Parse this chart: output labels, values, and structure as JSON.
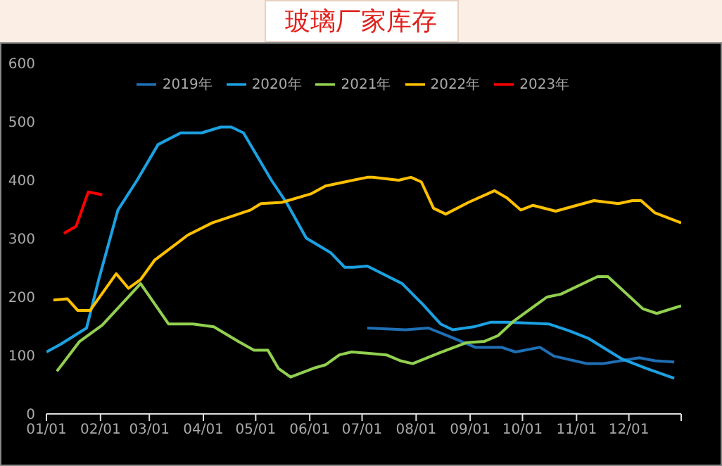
{
  "chart_data": {
    "type": "line",
    "title": "玻璃厂家库存",
    "legend": "top",
    "grid": false,
    "marker": "none",
    "line_style": "solid",
    "xlim": [
      "--01-01",
      "--12-31"
    ],
    "xticks": [
      {
        "value": "--01-01",
        "label": "01/01"
      },
      {
        "value": "--02-01",
        "label": "02/01"
      },
      {
        "value": "--03-01",
        "label": "03/01"
      },
      {
        "value": "--04-01",
        "label": "04/01"
      },
      {
        "value": "--05-01",
        "label": "05/01"
      },
      {
        "value": "--06-01",
        "label": "06/01"
      },
      {
        "value": "--07-01",
        "label": "07/01"
      },
      {
        "value": "--08-01",
        "label": "08/01"
      },
      {
        "value": "--09-01",
        "label": "09/01"
      },
      {
        "value": "--10-01",
        "label": "10/01"
      },
      {
        "value": "--11-01",
        "label": "11/01"
      },
      {
        "value": "--12-01",
        "label": "12/01"
      },
      {
        "value": "--12-31",
        "label": null
      }
    ],
    "ylim": [
      0,
      600
    ],
    "yticks": [
      0,
      100,
      200,
      300,
      400,
      500,
      600
    ],
    "series": [
      {
        "name": "2019年",
        "color": "#1f6fb4",
        "x": [
          "--07-04",
          "--07-26",
          "--08-08",
          "--08-19",
          "--09-04",
          "--09-19",
          "--09-27",
          "--10-11",
          "--10-19",
          "--11-07",
          "--11-16",
          "--12-07",
          "--12-16",
          "--12-27"
        ],
        "values": [
          147,
          144,
          147,
          134,
          114,
          114,
          106,
          114,
          99,
          86,
          86,
          96,
          91,
          89
        ]
      },
      {
        "name": "2020年",
        "color": "#1ba1e2",
        "x": [
          "--01-01",
          "--01-09",
          "--01-24",
          "--01-31",
          "--02-11",
          "--02-22",
          "--03-06",
          "--03-19",
          "--03-31",
          "--04-11",
          "--04-17",
          "--04-24",
          "--05-10",
          "--05-19",
          "--05-30",
          "--06-13",
          "--06-21",
          "--06-26",
          "--07-04",
          "--07-24",
          "--08-05",
          "--08-15",
          "--08-22",
          "--09-03",
          "--09-13",
          "--09-22",
          "--10-16",
          "--10-28",
          "--11-08",
          "--11-27",
          "--12-11",
          "--12-27"
        ],
        "values": [
          106,
          119,
          147,
          230,
          349,
          400,
          461,
          481,
          481,
          491,
          491,
          481,
          400,
          360,
          301,
          276,
          251,
          251,
          253,
          223,
          187,
          154,
          144,
          149,
          157,
          157,
          154,
          142,
          129,
          94,
          78,
          61
        ]
      },
      {
        "name": "2021年",
        "color": "#92d050",
        "x": [
          "--01-07",
          "--01-20",
          "--02-02",
          "--02-24",
          "--03-12",
          "--03-26",
          "--04-07",
          "--04-21",
          "--04-30",
          "--05-08",
          "--05-14",
          "--05-21",
          "--06-03",
          "--06-10",
          "--06-18",
          "--06-25",
          "--07-04",
          "--07-15",
          "--07-23",
          "--07-30",
          "--08-14",
          "--08-30",
          "--09-09",
          "--09-17",
          "--09-26",
          "--10-15",
          "--10-23",
          "--11-13",
          "--11-19",
          "--12-09",
          "--12-17",
          "--12-31"
        ],
        "values": [
          73,
          124,
          152,
          223,
          154,
          154,
          149,
          124,
          109,
          109,
          78,
          63,
          78,
          84,
          101,
          106,
          104,
          101,
          91,
          86,
          104,
          122,
          124,
          134,
          159,
          200,
          205,
          235,
          235,
          180,
          172,
          185
        ]
      },
      {
        "name": "2022年",
        "color": "#ffc000",
        "x": [
          "--01-05",
          "--01-13",
          "--01-19",
          "--01-26",
          "--02-10",
          "--02-17",
          "--02-24",
          "--03-04",
          "--03-23",
          "--04-06",
          "--04-28",
          "--05-04",
          "--05-16",
          "--06-02",
          "--06-10",
          "--06-21",
          "--07-04",
          "--07-07",
          "--07-22",
          "--07-29",
          "--08-04",
          "--08-11",
          "--08-18",
          "--08-31",
          "--09-15",
          "--09-22",
          "--09-30",
          "--10-07",
          "--10-20",
          "--11-11",
          "--11-25",
          "--12-03",
          "--12-08",
          "--12-16",
          "--12-31"
        ],
        "values": [
          195,
          197,
          177,
          177,
          240,
          215,
          230,
          263,
          306,
          327,
          349,
          360,
          362,
          377,
          390,
          397,
          405,
          405,
          400,
          405,
          397,
          352,
          342,
          362,
          382,
          370,
          349,
          357,
          347,
          365,
          360,
          365,
          365,
          344,
          327
        ]
      },
      {
        "name": "2023年",
        "color": "#ff0000",
        "x": [
          "--01-11",
          "--01-18",
          "--01-25",
          "--02-02"
        ],
        "values": [
          309,
          321,
          380,
          375
        ]
      }
    ]
  }
}
